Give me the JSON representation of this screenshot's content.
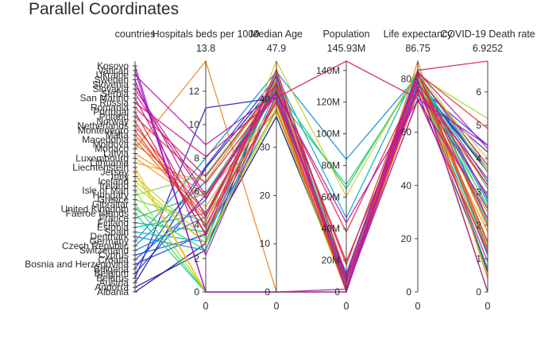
{
  "chart_data": {
    "type": "parallel_coordinates",
    "title": "Parallel Coordinates",
    "dimensions": [
      {
        "label": "countries",
        "type": "categorical",
        "categories": [
          "Albania",
          "Andorra",
          "Austria",
          "Belarus",
          "Belgium",
          "Bulgaria",
          "Bosnia and Herzegovina",
          "Croatia",
          "Cyprus",
          "Switzerland",
          "Czech Republic",
          "Germany",
          "Denmark",
          "Spain",
          "Estonia",
          "Finland",
          "France",
          "Faeroe Islands",
          "United Kingdom",
          "Gibraltar",
          "Greece",
          "Hungary",
          "Isle of Man",
          "Ireland",
          "Iceland",
          "Italy",
          "Jersey",
          "Liechtenstein",
          "Lithuania",
          "Luxembourg",
          "Latvia",
          "Monaco",
          "Moldova",
          "Macedonia",
          "Malta",
          "Montenegro",
          "Netherlands",
          "Norway",
          "Poland",
          "Portugal",
          "Romania",
          "Russia",
          "San Marino",
          "Serbia",
          "Slovakia",
          "Slovenia",
          "Sweden",
          "Ukraine",
          "Vatican",
          "Kosovo"
        ]
      },
      {
        "label": "Hospitals beds per 1000",
        "range": [
          0,
          13.8
        ],
        "ticks": [
          0,
          2,
          4,
          6,
          8,
          10,
          12
        ],
        "top_label": "13.8",
        "bottom_label": "0"
      },
      {
        "label": "Median Age",
        "range": [
          0,
          47.9
        ],
        "ticks": [
          0,
          10,
          20,
          30,
          40
        ],
        "top_label": "47.9",
        "bottom_label": "0"
      },
      {
        "label": "Population",
        "range": [
          0,
          145.93
        ],
        "unit": "M",
        "ticks": [
          0,
          20,
          40,
          60,
          80,
          100,
          120,
          140
        ],
        "tick_labels": [
          "0",
          "20M",
          "40M",
          "60M",
          "80M",
          "100M",
          "120M",
          "140M"
        ],
        "top_label": "145.93M",
        "bottom_label": "0"
      },
      {
        "label": "Life expectancy",
        "range": [
          0,
          86.75
        ],
        "ticks": [
          0,
          20,
          40,
          60,
          80
        ],
        "top_label": "86.75",
        "bottom_label": "0"
      },
      {
        "label": "COVID-19 Death rate",
        "range": [
          0,
          6.9252
        ],
        "ticks": [
          0,
          1,
          2,
          3,
          4,
          5,
          6
        ],
        "top_label": "6.9252",
        "bottom_label": "0"
      }
    ],
    "colorscale": [
      "#0d0887",
      "#2a2ad8",
      "#0b6be0",
      "#00b4c8",
      "#1fd06a",
      "#9ee020",
      "#f0c020",
      "#f08020",
      "#e8341c",
      "#d8185c",
      "#c81c9a",
      "#9a18c8"
    ],
    "records": [
      [
        "Albania",
        2.9,
        36.4,
        2.88,
        78.6,
        3.6
      ],
      [
        "Andorra",
        2.5,
        44.9,
        0.08,
        83.0,
        0.6
      ],
      [
        "Austria",
        7.4,
        43.5,
        8.96,
        81.7,
        3.6
      ],
      [
        "Belarus",
        11.0,
        40.3,
        9.45,
        74.8,
        0.7
      ],
      [
        "Belgium",
        5.8,
        41.9,
        11.59,
        81.6,
        2.8
      ],
      [
        "Bulgaria",
        7.5,
        44.6,
        6.95,
        75.1,
        4.2
      ],
      [
        "Bosnia and Herzegovina",
        3.5,
        43.1,
        3.28,
        77.4,
        4.4
      ],
      [
        "Croatia",
        5.5,
        43.9,
        4.1,
        78.5,
        3.7
      ],
      [
        "Cyprus",
        3.4,
        37.9,
        1.21,
        80.9,
        3.3
      ],
      [
        "Switzerland",
        4.5,
        43.1,
        8.65,
        83.8,
        2.2
      ],
      [
        "Czech Republic",
        6.6,
        43.3,
        10.71,
        79.4,
        1.1
      ],
      [
        "Germany",
        8.0,
        45.7,
        83.78,
        81.3,
        2.7
      ],
      [
        "Denmark",
        2.5,
        42.0,
        5.79,
        80.9,
        1.3
      ],
      [
        "Spain",
        3.0,
        44.9,
        46.75,
        83.6,
        2.1
      ],
      [
        "Estonia",
        4.7,
        42.4,
        1.33,
        78.8,
        1.5
      ],
      [
        "Finland",
        3.6,
        42.8,
        5.54,
        81.9,
        1.2
      ],
      [
        "France",
        5.9,
        42.3,
        65.27,
        82.7,
        2.5
      ],
      [
        "Faeroe Islands",
        0,
        0,
        0.05,
        80.7,
        0.7
      ],
      [
        "United Kingdom",
        2.5,
        40.5,
        67.89,
        81.3,
        3.1
      ],
      [
        "Gibraltar",
        0,
        0,
        0.03,
        80.9,
        0
      ],
      [
        "Greece",
        4.2,
        45.6,
        10.42,
        82.2,
        3.6
      ],
      [
        "Hungary",
        7.0,
        43.3,
        9.66,
        76.9,
        2.6
      ],
      [
        "Isle of Man",
        0,
        0,
        0.09,
        81.4,
        5.2
      ],
      [
        "Ireland",
        2.9,
        38.2,
        4.94,
        82.3,
        1.9
      ],
      [
        "Iceland",
        2.9,
        37.5,
        0.34,
        82.9,
        0.5
      ],
      [
        "Italy",
        3.2,
        47.9,
        60.46,
        83.5,
        3.7
      ],
      [
        "Jersey",
        0,
        0,
        0.1,
        80.6,
        4.0
      ],
      [
        "Liechtenstein",
        0,
        0,
        0.04,
        82.0,
        0
      ],
      [
        "Lithuania",
        6.6,
        43.5,
        2.72,
        76.4,
        1.2
      ],
      [
        "Luxembourg",
        5.1,
        39.7,
        0.63,
        82.3,
        1.4
      ],
      [
        "Latvia",
        5.6,
        43.9,
        1.89,
        75.3,
        1.8
      ],
      [
        "Monaco",
        13.8,
        0,
        0.04,
        86.75,
        0.4
      ],
      [
        "Moldova",
        5.8,
        37.7,
        4.03,
        71.9,
        2.4
      ],
      [
        "Macedonia",
        4.3,
        39.1,
        2.08,
        75.8,
        3.2
      ],
      [
        "Malta",
        4.5,
        42.4,
        0.44,
        82.5,
        1.3
      ],
      [
        "Montenegro",
        4.0,
        39.6,
        0.63,
        76.9,
        2.2
      ],
      [
        "Netherlands",
        4.7,
        43.3,
        17.13,
        82.3,
        4.9
      ],
      [
        "Norway",
        3.5,
        39.8,
        5.42,
        82.4,
        1.5
      ],
      [
        "Poland",
        6.5,
        41.7,
        37.85,
        78.7,
        3.2
      ],
      [
        "Portugal",
        3.4,
        46.2,
        10.2,
        82.1,
        2.0
      ],
      [
        "Romania",
        6.9,
        43.2,
        19.24,
        76.1,
        3.4
      ],
      [
        "Russia",
        8.1,
        40.3,
        145.93,
        72.6,
        1.2
      ],
      [
        "San Marino",
        3.8,
        45.2,
        0.03,
        83.3,
        6.9252
      ],
      [
        "Serbia",
        5.6,
        41.6,
        8.74,
        76.0,
        2.9
      ],
      [
        "Slovakia",
        5.8,
        41.2,
        5.46,
        77.5,
        0.9
      ],
      [
        "Slovenia",
        4.5,
        44.9,
        2.08,
        81.3,
        3.8
      ],
      [
        "Sweden",
        2.2,
        41.1,
        10.1,
        82.8,
        4.3
      ],
      [
        "Ukraine",
        8.8,
        41.2,
        43.73,
        72.1,
        2.5
      ],
      [
        "Vatican",
        0,
        0,
        0.001,
        80.0,
        0
      ],
      [
        "Kosovo",
        0,
        0,
        1.81,
        72.5,
        4.4
      ]
    ]
  }
}
